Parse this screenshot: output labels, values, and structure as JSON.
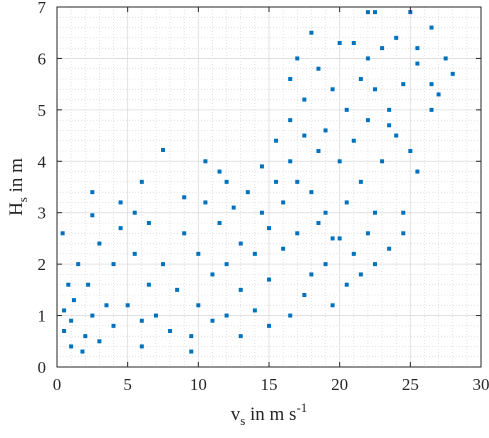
{
  "chart_data": {
    "type": "scatter",
    "title": "",
    "xlabel": {
      "main": "v",
      "sub": "s",
      "rest": " in m s",
      "sup": "-1"
    },
    "ylabel": {
      "main": "H",
      "sub": "s",
      "rest": " in m"
    },
    "xlim": [
      0,
      30
    ],
    "ylim": [
      0,
      7
    ],
    "xticks": [
      0,
      5,
      10,
      15,
      20,
      25,
      30
    ],
    "yticks": [
      0,
      1,
      2,
      3,
      4,
      5,
      6,
      7
    ],
    "grid": true,
    "minor_grid": true,
    "marker": "square",
    "color": "#0072BD",
    "series": [
      {
        "points": [
          [
            0.5,
            0.7
          ],
          [
            1.0,
            0.9
          ],
          [
            1.2,
            1.3
          ],
          [
            0.8,
            1.6
          ],
          [
            1.5,
            2.0
          ],
          [
            0.4,
            2.6
          ],
          [
            0.5,
            1.1
          ],
          [
            1.0,
            0.4
          ],
          [
            2.0,
            0.6
          ],
          [
            2.5,
            1.0
          ],
          [
            2.2,
            1.6
          ],
          [
            3.0,
            2.4
          ],
          [
            2.5,
            2.95
          ],
          [
            3.0,
            0.5
          ],
          [
            3.5,
            1.2
          ],
          [
            4.0,
            2.0
          ],
          [
            4.5,
            2.7
          ],
          [
            4.0,
            0.8
          ],
          [
            5.0,
            1.2
          ],
          [
            5.5,
            2.2
          ],
          [
            5.5,
            3.0
          ],
          [
            6.0,
            0.9
          ],
          [
            6.5,
            1.6
          ],
          [
            6.5,
            2.8
          ],
          [
            7.0,
            1.0
          ],
          [
            7.5,
            2.0
          ],
          [
            7.5,
            4.22
          ],
          [
            8.0,
            0.7
          ],
          [
            8.5,
            1.5
          ],
          [
            9.0,
            2.6
          ],
          [
            9.0,
            3.3
          ],
          [
            9.5,
            0.6
          ],
          [
            10.0,
            1.2
          ],
          [
            10.0,
            2.2
          ],
          [
            10.5,
            3.2
          ],
          [
            11.0,
            0.9
          ],
          [
            11.0,
            1.8
          ],
          [
            11.5,
            2.8
          ],
          [
            12.0,
            1.0
          ],
          [
            12.0,
            2.0
          ],
          [
            12.5,
            3.1
          ],
          [
            12.0,
            3.6
          ],
          [
            13.0,
            1.5
          ],
          [
            13.0,
            2.4
          ],
          [
            13.5,
            3.4
          ],
          [
            14.0,
            1.1
          ],
          [
            14.0,
            2.2
          ],
          [
            14.5,
            3.0
          ],
          [
            14.5,
            3.9
          ],
          [
            15.0,
            1.7
          ],
          [
            15.0,
            2.7
          ],
          [
            15.5,
            3.6
          ],
          [
            15.5,
            4.4
          ],
          [
            16.0,
            2.3
          ],
          [
            16.0,
            3.2
          ],
          [
            16.5,
            4.0
          ],
          [
            16.5,
            4.8
          ],
          [
            17.0,
            2.6
          ],
          [
            17.0,
            3.6
          ],
          [
            17.5,
            4.5
          ],
          [
            17.5,
            5.2
          ],
          [
            18.0,
            1.8
          ],
          [
            18.0,
            3.4
          ],
          [
            18.5,
            2.8
          ],
          [
            18.5,
            4.2
          ],
          [
            19.0,
            3.0
          ],
          [
            19.0,
            4.6
          ],
          [
            19.5,
            5.4
          ],
          [
            19.5,
            1.2
          ],
          [
            20.0,
            2.5
          ],
          [
            20.0,
            4.0
          ],
          [
            20.5,
            3.2
          ],
          [
            20.5,
            5.0
          ],
          [
            21.0,
            2.2
          ],
          [
            21.0,
            4.4
          ],
          [
            21.0,
            6.3
          ],
          [
            21.5,
            3.6
          ],
          [
            21.5,
            5.6
          ],
          [
            22.0,
            2.6
          ],
          [
            22.0,
            4.8
          ],
          [
            22.0,
            6.0
          ],
          [
            22.5,
            3.0
          ],
          [
            22.5,
            5.4
          ],
          [
            22.5,
            6.9
          ],
          [
            23.0,
            4.0
          ],
          [
            23.0,
            6.2
          ],
          [
            23.5,
            2.3
          ],
          [
            23.5,
            5.0
          ],
          [
            24.0,
            4.5
          ],
          [
            24.0,
            6.4
          ],
          [
            24.5,
            3.0
          ],
          [
            24.5,
            5.5
          ],
          [
            25.0,
            4.2
          ],
          [
            25.0,
            6.9
          ],
          [
            25.5,
            3.8
          ],
          [
            25.5,
            5.9
          ],
          [
            26.5,
            5.5
          ],
          [
            26.5,
            6.6
          ],
          [
            27.0,
            5.3
          ],
          [
            28.0,
            5.7
          ],
          [
            20.5,
            1.6
          ],
          [
            17.5,
            1.4
          ],
          [
            18.5,
            5.8
          ],
          [
            16.5,
            5.6
          ],
          [
            22.5,
            2.0
          ],
          [
            2.5,
            3.4
          ],
          [
            6.0,
            3.6
          ],
          [
            11.5,
            3.8
          ],
          [
            10.5,
            4.0
          ],
          [
            4.5,
            3.2
          ],
          [
            20.0,
            6.3
          ],
          [
            25.5,
            6.2
          ],
          [
            23.5,
            4.7
          ],
          [
            24.5,
            2.6
          ],
          [
            26.5,
            5.0
          ],
          [
            21.5,
            1.8
          ],
          [
            19.5,
            2.5
          ],
          [
            27.5,
            6.0
          ],
          [
            1.8,
            0.3
          ],
          [
            6.0,
            0.4
          ],
          [
            9.5,
            0.3
          ],
          [
            13.0,
            0.6
          ],
          [
            15.0,
            0.8
          ],
          [
            16.5,
            1.0
          ],
          [
            19.0,
            2.0
          ],
          [
            17.0,
            6.0
          ],
          [
            18.0,
            6.5
          ],
          [
            22.0,
            6.9
          ]
        ]
      }
    ]
  }
}
